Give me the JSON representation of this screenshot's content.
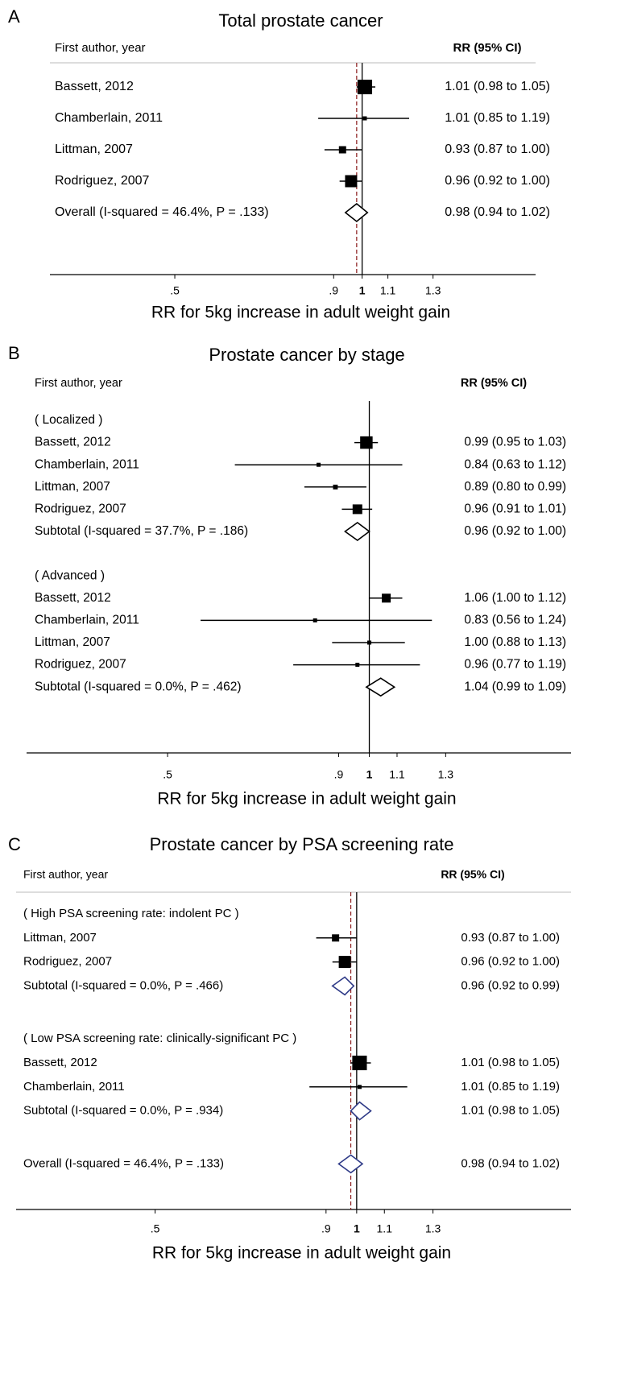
{
  "chart_data": [
    {
      "type": "forest",
      "panel": "A",
      "title": "Total prostate cancer",
      "label_header": "First author, year",
      "value_header": "RR (95% CI)",
      "xlabel": "RR for 5kg increase in adult weight gain",
      "xscale": "log",
      "xlim": [
        0.315,
        1.9
      ],
      "xticks": [
        {
          "value": 0.5,
          "label": ".5"
        },
        {
          "value": 0.9,
          "label": ".9"
        },
        1,
        1.1,
        1.3
      ],
      "null_line": 1,
      "overall_line": true,
      "marker_color": "#000000",
      "diamond_color": "#000000",
      "overall_line_color": "#8b1a1a",
      "rows": [
        {
          "label": "Bassett, 2012",
          "rr": 1.01,
          "lower": 0.98,
          "upper": 1.05,
          "value_label": "1.01 (0.98 to 1.05)",
          "marker": "square"
        },
        {
          "label": "Chamberlain, 2011",
          "rr": 1.01,
          "lower": 0.85,
          "upper": 1.19,
          "value_label": "1.01 (0.85 to 1.19)",
          "marker": "square"
        },
        {
          "label": "Littman, 2007",
          "rr": 0.93,
          "lower": 0.87,
          "upper": 1.0,
          "value_label": "0.93 (0.87 to 1.00)",
          "marker": "square"
        },
        {
          "label": "Rodriguez, 2007",
          "rr": 0.96,
          "lower": 0.92,
          "upper": 1.0,
          "value_label": "0.96 (0.92 to 1.00)",
          "marker": "square"
        },
        {
          "label": "Overall  (I-squared = 46.4%, P = .133)",
          "rr": 0.98,
          "lower": 0.94,
          "upper": 1.02,
          "value_label": "0.98 (0.94 to 1.02)",
          "marker": "diamond"
        }
      ]
    },
    {
      "type": "forest",
      "panel": "B",
      "title": "Prostate cancer by stage",
      "label_header": "First author, year",
      "value_header": "RR (95% CI)",
      "xlabel": "RR for 5kg increase in adult weight gain",
      "xscale": "log",
      "xlim": [
        0.308,
        2.0
      ],
      "xticks": [
        {
          "value": 0.5,
          "label": ".5"
        },
        {
          "value": 0.9,
          "label": ".9"
        },
        1,
        1.1,
        1.3
      ],
      "null_line": 1,
      "overall_line": false,
      "marker_color": "#000000",
      "diamond_color": "#000000",
      "overall_line_color": "#8b1a1a",
      "rows": [
        {
          "label": "( Localized )"
        },
        {
          "label": "Bassett, 2012",
          "rr": 0.99,
          "lower": 0.95,
          "upper": 1.03,
          "value_label": "0.99 (0.95 to 1.03)",
          "marker": "square"
        },
        {
          "label": "Chamberlain, 2011",
          "rr": 0.84,
          "lower": 0.63,
          "upper": 1.12,
          "value_label": "0.84 (0.63 to 1.12)",
          "marker": "square"
        },
        {
          "label": "Littman, 2007",
          "rr": 0.89,
          "lower": 0.8,
          "upper": 0.99,
          "value_label": "0.89 (0.80 to 0.99)",
          "marker": "square"
        },
        {
          "label": "Rodriguez, 2007",
          "rr": 0.96,
          "lower": 0.91,
          "upper": 1.01,
          "value_label": "0.96 (0.91 to 1.01)",
          "marker": "square"
        },
        {
          "label": "Subtotal  (I-squared = 37.7%, P = .186)",
          "rr": 0.96,
          "lower": 0.92,
          "upper": 1.0,
          "value_label": "0.96 (0.92 to 1.00)",
          "marker": "diamond"
        },
        {
          "label": "( Advanced )"
        },
        {
          "label": "Bassett, 2012",
          "rr": 1.06,
          "lower": 1.0,
          "upper": 1.12,
          "value_label": "1.06 (1.00 to 1.12)",
          "marker": "square"
        },
        {
          "label": "Chamberlain, 2011",
          "rr": 0.83,
          "lower": 0.56,
          "upper": 1.24,
          "value_label": "0.83 (0.56 to 1.24)",
          "marker": "square"
        },
        {
          "label": "Littman, 2007",
          "rr": 1.0,
          "lower": 0.88,
          "upper": 1.13,
          "value_label": "1.00 (0.88 to 1.13)",
          "marker": "square"
        },
        {
          "label": "Rodriguez, 2007",
          "rr": 0.96,
          "lower": 0.77,
          "upper": 1.19,
          "value_label": "0.96 (0.77 to 1.19)",
          "marker": "square"
        },
        {
          "label": "Subtotal  (I-squared = 0.0%, P = .462)",
          "rr": 1.04,
          "lower": 0.99,
          "upper": 1.09,
          "value_label": "1.04 (0.99 to 1.09)",
          "marker": "diamond"
        }
      ]
    },
    {
      "type": "forest",
      "panel": "C",
      "title": "Prostate cancer by PSA screening rate",
      "label_header": "First author, year",
      "value_header": "RR (95% CI)",
      "xlabel": "RR for 5kg increase in adult weight gain",
      "xscale": "log",
      "xlim": [
        0.31,
        2.09
      ],
      "xticks": [
        {
          "value": 0.5,
          "label": ".5"
        },
        {
          "value": 0.9,
          "label": ".9"
        },
        1,
        1.1,
        1.3
      ],
      "null_line": 1,
      "overall_line": true,
      "marker_color": "#000000",
      "diamond_color": "#2e3a87",
      "overall_line_color": "#8b1a1a",
      "rows": [
        {
          "label": "( High PSA screening rate: indolent PC )"
        },
        {
          "label": "Littman, 2007",
          "rr": 0.93,
          "lower": 0.87,
          "upper": 1.0,
          "value_label": "0.93 (0.87 to 1.00)",
          "marker": "square"
        },
        {
          "label": "Rodriguez, 2007",
          "rr": 0.96,
          "lower": 0.92,
          "upper": 1.0,
          "value_label": "0.96 (0.92 to 1.00)",
          "marker": "square"
        },
        {
          "label": "Subtotal  (I-squared = 0.0%, P = .466)",
          "rr": 0.96,
          "lower": 0.92,
          "upper": 0.99,
          "value_label": "0.96 (0.92 to 0.99)",
          "marker": "diamond"
        },
        {
          "label": "( Low PSA screening rate: clinically-significant PC )"
        },
        {
          "label": "Bassett, 2012",
          "rr": 1.01,
          "lower": 0.98,
          "upper": 1.05,
          "value_label": "1.01 (0.98 to 1.05)",
          "marker": "square"
        },
        {
          "label": "Chamberlain, 2011",
          "rr": 1.01,
          "lower": 0.85,
          "upper": 1.19,
          "value_label": "1.01 (0.85 to 1.19)",
          "marker": "square"
        },
        {
          "label": "Subtotal  (I-squared = 0.0%, P = .934)",
          "rr": 1.01,
          "lower": 0.98,
          "upper": 1.05,
          "value_label": "1.01 (0.98 to 1.05)",
          "marker": "diamond"
        },
        {
          "label": "Overall  (I-squared = 46.4%, P = .133)",
          "rr": 0.98,
          "lower": 0.94,
          "upper": 1.02,
          "value_label": "0.98 (0.94 to 1.02)",
          "marker": "diamond"
        }
      ]
    }
  ]
}
